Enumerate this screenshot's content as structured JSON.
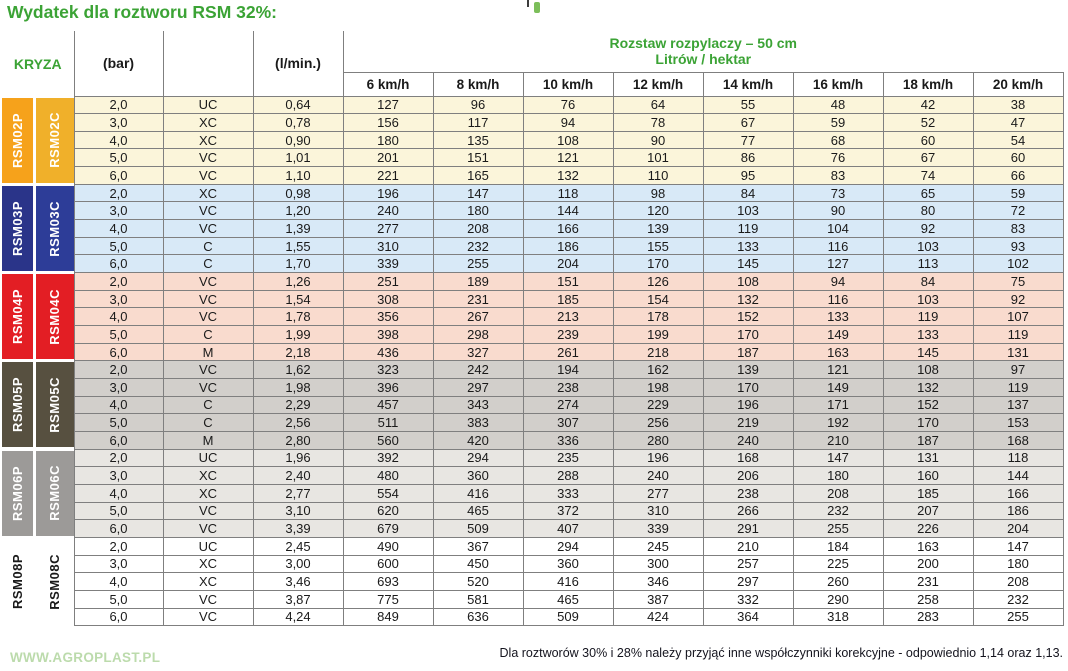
{
  "title": "Wydatek dla roztworu RSM 32%:",
  "colors": {
    "green": "#3BA335",
    "grid_border": "#7F7F7F",
    "note_text": "#14141E",
    "website_text": "#BCDBAC"
  },
  "header": {
    "kryza": "KRYZA",
    "bar": "(bar)",
    "lmin": "(l/min.)",
    "spacing_line1": "Rozstaw rozpylaczy – 50 cm",
    "spacing_line2": "Litrów / hektar",
    "speeds": [
      "6 km/h",
      "8 km/h",
      "10 km/h",
      "12 km/h",
      "14 km/h",
      "16 km/h",
      "18 km/h",
      "20 km/h"
    ]
  },
  "groups": [
    {
      "p_label": "RSM02P",
      "c_label": "RSM02C",
      "colors": {
        "p": "#F6A21B",
        "c": "#F0B02A",
        "fg": "#FFFFFF"
      },
      "row_bg": "#FBF5DA",
      "rows": [
        {
          "bar": "2,0",
          "size": "UC",
          "lmin": "0,64",
          "values": [
            127,
            96,
            76,
            64,
            55,
            48,
            42,
            38
          ]
        },
        {
          "bar": "3,0",
          "size": "XC",
          "lmin": "0,78",
          "values": [
            156,
            117,
            94,
            78,
            67,
            59,
            52,
            47
          ]
        },
        {
          "bar": "4,0",
          "size": "XC",
          "lmin": "0,90",
          "values": [
            180,
            135,
            108,
            90,
            77,
            68,
            60,
            54
          ]
        },
        {
          "bar": "5,0",
          "size": "VC",
          "lmin": "1,01",
          "values": [
            201,
            151,
            121,
            101,
            86,
            76,
            67,
            60
          ]
        },
        {
          "bar": "6,0",
          "size": "VC",
          "lmin": "1,10",
          "values": [
            221,
            165,
            132,
            110,
            95,
            83,
            74,
            66
          ]
        }
      ]
    },
    {
      "p_label": "RSM03P",
      "c_label": "RSM03C",
      "colors": {
        "p": "#2A3489",
        "c": "#2D3D98",
        "fg": "#FFFFFF"
      },
      "row_bg": "#D8E9F7",
      "rows": [
        {
          "bar": "2,0",
          "size": "XC",
          "lmin": "0,98",
          "values": [
            196,
            147,
            118,
            98,
            84,
            73,
            65,
            59
          ]
        },
        {
          "bar": "3,0",
          "size": "VC",
          "lmin": "1,20",
          "values": [
            240,
            180,
            144,
            120,
            103,
            90,
            80,
            72
          ]
        },
        {
          "bar": "4,0",
          "size": "VC",
          "lmin": "1,39",
          "values": [
            277,
            208,
            166,
            139,
            119,
            104,
            92,
            83
          ]
        },
        {
          "bar": "5,0",
          "size": "C",
          "lmin": "1,55",
          "values": [
            310,
            232,
            186,
            155,
            133,
            116,
            103,
            93
          ]
        },
        {
          "bar": "6,0",
          "size": "C",
          "lmin": "1,70",
          "values": [
            339,
            255,
            204,
            170,
            145,
            127,
            113,
            102
          ]
        }
      ]
    },
    {
      "p_label": "RSM04P",
      "c_label": "RSM04C",
      "colors": {
        "p": "#E31E24",
        "c": "#E31E24",
        "fg": "#FFFFFF"
      },
      "row_bg": "#F9DBCE",
      "rows": [
        {
          "bar": "2,0",
          "size": "VC",
          "lmin": "1,26",
          "values": [
            251,
            189,
            151,
            126,
            108,
            94,
            84,
            75
          ]
        },
        {
          "bar": "3,0",
          "size": "VC",
          "lmin": "1,54",
          "values": [
            308,
            231,
            185,
            154,
            132,
            116,
            103,
            92
          ]
        },
        {
          "bar": "4,0",
          "size": "VC",
          "lmin": "1,78",
          "values": [
            356,
            267,
            213,
            178,
            152,
            133,
            119,
            107
          ]
        },
        {
          "bar": "5,0",
          "size": "C",
          "lmin": "1,99",
          "values": [
            398,
            298,
            239,
            199,
            170,
            149,
            133,
            119
          ]
        },
        {
          "bar": "6,0",
          "size": "M",
          "lmin": "2,18",
          "values": [
            436,
            327,
            261,
            218,
            187,
            163,
            145,
            131
          ]
        }
      ]
    },
    {
      "p_label": "RSM05P",
      "c_label": "RSM05C",
      "colors": {
        "p": "#575040",
        "c": "#575040",
        "fg": "#FFFFFF"
      },
      "row_bg": "#D2CFCB",
      "rows": [
        {
          "bar": "2,0",
          "size": "VC",
          "lmin": "1,62",
          "values": [
            323,
            242,
            194,
            162,
            139,
            121,
            108,
            97
          ]
        },
        {
          "bar": "3,0",
          "size": "VC",
          "lmin": "1,98",
          "values": [
            396,
            297,
            238,
            198,
            170,
            149,
            132,
            119
          ]
        },
        {
          "bar": "4,0",
          "size": "C",
          "lmin": "2,29",
          "values": [
            457,
            343,
            274,
            229,
            196,
            171,
            152,
            137
          ]
        },
        {
          "bar": "5,0",
          "size": "C",
          "lmin": "2,56",
          "values": [
            511,
            383,
            307,
            256,
            219,
            192,
            170,
            153
          ]
        },
        {
          "bar": "6,0",
          "size": "M",
          "lmin": "2,80",
          "values": [
            560,
            420,
            336,
            280,
            240,
            210,
            187,
            168
          ]
        }
      ]
    },
    {
      "p_label": "RSM06P",
      "c_label": "RSM06C",
      "colors": {
        "p": "#9C9A98",
        "c": "#9C9A98",
        "fg": "#FFFFFF"
      },
      "row_bg": "#E8E6E2",
      "rows": [
        {
          "bar": "2,0",
          "size": "UC",
          "lmin": "1,96",
          "values": [
            392,
            294,
            235,
            196,
            168,
            147,
            131,
            118
          ]
        },
        {
          "bar": "3,0",
          "size": "XC",
          "lmin": "2,40",
          "values": [
            480,
            360,
            288,
            240,
            206,
            180,
            160,
            144
          ]
        },
        {
          "bar": "4,0",
          "size": "XC",
          "lmin": "2,77",
          "values": [
            554,
            416,
            333,
            277,
            238,
            208,
            185,
            166
          ]
        },
        {
          "bar": "5,0",
          "size": "VC",
          "lmin": "3,10",
          "values": [
            620,
            465,
            372,
            310,
            266,
            232,
            207,
            186
          ]
        },
        {
          "bar": "6,0",
          "size": "VC",
          "lmin": "3,39",
          "values": [
            679,
            509,
            407,
            339,
            291,
            255,
            226,
            204
          ]
        }
      ]
    },
    {
      "p_label": "RSM08P",
      "c_label": "RSM08C",
      "colors": {
        "p": "#FFFFFF",
        "c": "#FFFFFF",
        "fg": "#1A1A1A"
      },
      "row_bg": "#FFFFFF",
      "rows": [
        {
          "bar": "2,0",
          "size": "UC",
          "lmin": "2,45",
          "values": [
            490,
            367,
            294,
            245,
            210,
            184,
            163,
            147
          ]
        },
        {
          "bar": "3,0",
          "size": "XC",
          "lmin": "3,00",
          "values": [
            600,
            450,
            360,
            300,
            257,
            225,
            200,
            180
          ]
        },
        {
          "bar": "4,0",
          "size": "XC",
          "lmin": "3,46",
          "values": [
            693,
            520,
            416,
            346,
            297,
            260,
            231,
            208
          ]
        },
        {
          "bar": "5,0",
          "size": "VC",
          "lmin": "3,87",
          "values": [
            775,
            581,
            465,
            387,
            332,
            290,
            258,
            232
          ]
        },
        {
          "bar": "6,0",
          "size": "VC",
          "lmin": "4,24",
          "values": [
            849,
            636,
            509,
            424,
            364,
            318,
            283,
            255
          ]
        }
      ]
    }
  ],
  "footer": {
    "website": "WWW.AGROPLAST.PL",
    "note": "Dla roztworów 30% i 28% należy przyjąć inne współczynniki korekcyjne - odpowiednio 1,14 oraz 1,13."
  }
}
